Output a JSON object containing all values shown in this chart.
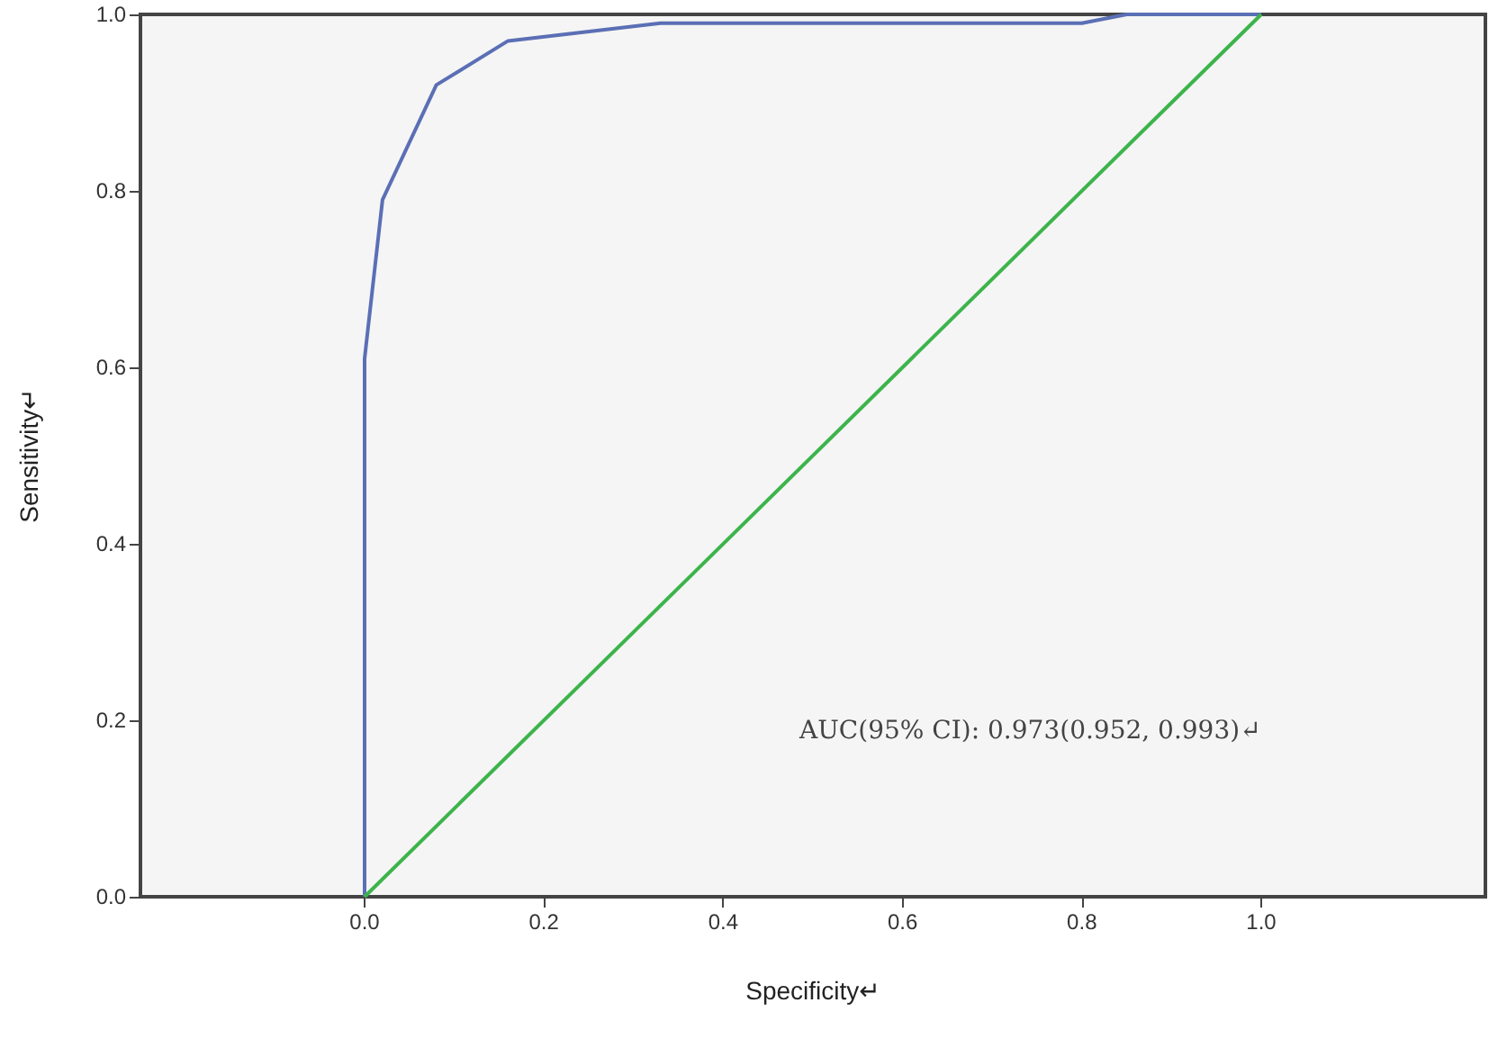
{
  "chart_data": {
    "type": "line",
    "xlabel": "Specificity↵",
    "ylabel": "Sensitivity↵",
    "annotations": [
      "AUC(95% CI): 0.973(0.952, 0.993)↵"
    ],
    "series": [
      {
        "color": "#5b6fb5",
        "x": [
          0,
          0,
          0.02,
          0.08,
          0.16,
          0.33,
          0.8,
          0.85,
          1
        ],
        "values": [
          0,
          0.61,
          0.79,
          0.92,
          0.97,
          0.99,
          0.99,
          1,
          1
        ]
      },
      {
        "color": "#3cb44b",
        "x": [
          0,
          1
        ],
        "values": [
          0,
          1
        ]
      }
    ],
    "xlim": [
      -0.25,
      1.25
    ],
    "ylim": [
      0,
      1
    ],
    "xticks": [
      {
        "value": 0,
        "label": "0.0"
      },
      {
        "value": 0.2,
        "label": "0.2"
      },
      {
        "value": 0.4,
        "label": "0.4"
      },
      {
        "value": 0.6,
        "label": "0.6"
      },
      {
        "value": 0.8,
        "label": "0.8"
      },
      {
        "value": 1,
        "label": "1.0"
      }
    ],
    "yticks": [
      {
        "value": 0,
        "label": "0.0"
      },
      {
        "value": 0.2,
        "label": "0.2"
      },
      {
        "value": 0.4,
        "label": "0.4"
      },
      {
        "value": 0.6,
        "label": "0.6"
      },
      {
        "value": 0.8,
        "label": "0.8"
      },
      {
        "value": 1,
        "label": "1.0"
      }
    ],
    "grid": false,
    "marker": "none",
    "line_style": "solid"
  }
}
